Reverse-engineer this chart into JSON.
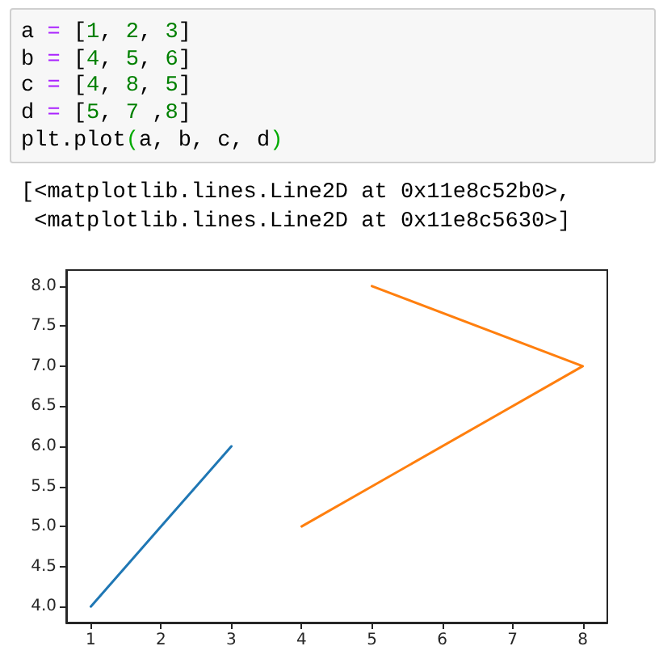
{
  "chart_data": {
    "type": "line",
    "annotations": [
      "a = [1, 2, 3]\nb = [4, 5, 6]\nc = [4, 8, 5]\nd = [5, 7 ,8]\nplt.plot(a, b, c, d)",
      "[<matplotlib.lines.Line2D at 0x11e8c52b0>,\n <matplotlib.lines.Line2D at 0x11e8c5630>]"
    ],
    "series": [
      {
        "x": [
          1,
          2,
          3
        ],
        "values": [
          4,
          5,
          6
        ],
        "color": "#1f77b4"
      },
      {
        "x": [
          4,
          8,
          5
        ],
        "values": [
          5,
          7,
          8
        ],
        "color": "#ff7f0e"
      }
    ],
    "xlim": [
      0.65,
      8.35
    ],
    "xticks": [
      1,
      2,
      3,
      4,
      5,
      6,
      7,
      8
    ],
    "ylim": [
      3.8,
      8.2
    ],
    "yticks": [
      {
        "value": 4,
        "label": "4.0"
      },
      {
        "value": 4.5,
        "label": "4.5"
      },
      {
        "value": 5,
        "label": "5.0"
      },
      {
        "value": 5.5,
        "label": "5.5"
      },
      {
        "value": 6,
        "label": "6.0"
      },
      {
        "value": 6.5,
        "label": "6.5"
      },
      {
        "value": 7,
        "label": "7.0"
      },
      {
        "value": 7.5,
        "label": "7.5"
      },
      {
        "value": 8,
        "label": "8.0"
      }
    ],
    "marker": "none",
    "line_style": "solid"
  }
}
